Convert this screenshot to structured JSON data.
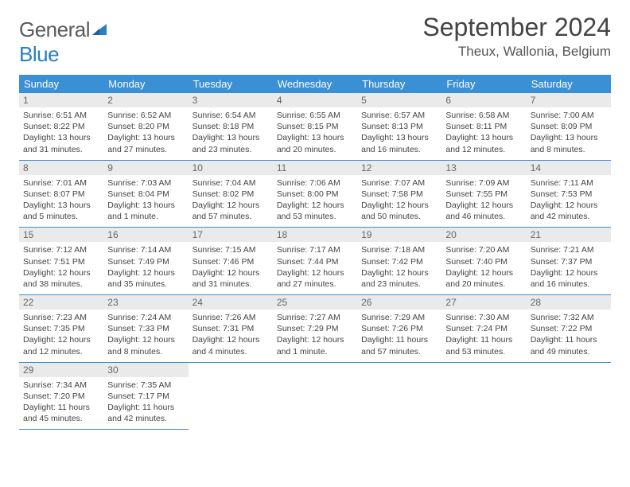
{
  "brand": {
    "word1": "General",
    "word2": "Blue"
  },
  "title": "September 2024",
  "location": "Theux, Wallonia, Belgium",
  "colors": {
    "header_bg": "#3b8fd4",
    "daynum_bg": "#eaeaea",
    "row_border": "#3b8fd4",
    "logo_gray": "#5a5a5a",
    "logo_blue": "#2a7fbf"
  },
  "weekdays": [
    "Sunday",
    "Monday",
    "Tuesday",
    "Wednesday",
    "Thursday",
    "Friday",
    "Saturday"
  ],
  "weeks": [
    [
      {
        "n": "1",
        "sr": "6:51 AM",
        "ss": "8:22 PM",
        "dl": "13 hours and 31 minutes."
      },
      {
        "n": "2",
        "sr": "6:52 AM",
        "ss": "8:20 PM",
        "dl": "13 hours and 27 minutes."
      },
      {
        "n": "3",
        "sr": "6:54 AM",
        "ss": "8:18 PM",
        "dl": "13 hours and 23 minutes."
      },
      {
        "n": "4",
        "sr": "6:55 AM",
        "ss": "8:15 PM",
        "dl": "13 hours and 20 minutes."
      },
      {
        "n": "5",
        "sr": "6:57 AM",
        "ss": "8:13 PM",
        "dl": "13 hours and 16 minutes."
      },
      {
        "n": "6",
        "sr": "6:58 AM",
        "ss": "8:11 PM",
        "dl": "13 hours and 12 minutes."
      },
      {
        "n": "7",
        "sr": "7:00 AM",
        "ss": "8:09 PM",
        "dl": "13 hours and 8 minutes."
      }
    ],
    [
      {
        "n": "8",
        "sr": "7:01 AM",
        "ss": "8:07 PM",
        "dl": "13 hours and 5 minutes."
      },
      {
        "n": "9",
        "sr": "7:03 AM",
        "ss": "8:04 PM",
        "dl": "13 hours and 1 minute."
      },
      {
        "n": "10",
        "sr": "7:04 AM",
        "ss": "8:02 PM",
        "dl": "12 hours and 57 minutes."
      },
      {
        "n": "11",
        "sr": "7:06 AM",
        "ss": "8:00 PM",
        "dl": "12 hours and 53 minutes."
      },
      {
        "n": "12",
        "sr": "7:07 AM",
        "ss": "7:58 PM",
        "dl": "12 hours and 50 minutes."
      },
      {
        "n": "13",
        "sr": "7:09 AM",
        "ss": "7:55 PM",
        "dl": "12 hours and 46 minutes."
      },
      {
        "n": "14",
        "sr": "7:11 AM",
        "ss": "7:53 PM",
        "dl": "12 hours and 42 minutes."
      }
    ],
    [
      {
        "n": "15",
        "sr": "7:12 AM",
        "ss": "7:51 PM",
        "dl": "12 hours and 38 minutes."
      },
      {
        "n": "16",
        "sr": "7:14 AM",
        "ss": "7:49 PM",
        "dl": "12 hours and 35 minutes."
      },
      {
        "n": "17",
        "sr": "7:15 AM",
        "ss": "7:46 PM",
        "dl": "12 hours and 31 minutes."
      },
      {
        "n": "18",
        "sr": "7:17 AM",
        "ss": "7:44 PM",
        "dl": "12 hours and 27 minutes."
      },
      {
        "n": "19",
        "sr": "7:18 AM",
        "ss": "7:42 PM",
        "dl": "12 hours and 23 minutes."
      },
      {
        "n": "20",
        "sr": "7:20 AM",
        "ss": "7:40 PM",
        "dl": "12 hours and 20 minutes."
      },
      {
        "n": "21",
        "sr": "7:21 AM",
        "ss": "7:37 PM",
        "dl": "12 hours and 16 minutes."
      }
    ],
    [
      {
        "n": "22",
        "sr": "7:23 AM",
        "ss": "7:35 PM",
        "dl": "12 hours and 12 minutes."
      },
      {
        "n": "23",
        "sr": "7:24 AM",
        "ss": "7:33 PM",
        "dl": "12 hours and 8 minutes."
      },
      {
        "n": "24",
        "sr": "7:26 AM",
        "ss": "7:31 PM",
        "dl": "12 hours and 4 minutes."
      },
      {
        "n": "25",
        "sr": "7:27 AM",
        "ss": "7:29 PM",
        "dl": "12 hours and 1 minute."
      },
      {
        "n": "26",
        "sr": "7:29 AM",
        "ss": "7:26 PM",
        "dl": "11 hours and 57 minutes."
      },
      {
        "n": "27",
        "sr": "7:30 AM",
        "ss": "7:24 PM",
        "dl": "11 hours and 53 minutes."
      },
      {
        "n": "28",
        "sr": "7:32 AM",
        "ss": "7:22 PM",
        "dl": "11 hours and 49 minutes."
      }
    ],
    [
      {
        "n": "29",
        "sr": "7:34 AM",
        "ss": "7:20 PM",
        "dl": "11 hours and 45 minutes."
      },
      {
        "n": "30",
        "sr": "7:35 AM",
        "ss": "7:17 PM",
        "dl": "11 hours and 42 minutes."
      },
      null,
      null,
      null,
      null,
      null
    ]
  ],
  "labels": {
    "sunrise": "Sunrise: ",
    "sunset": "Sunset: ",
    "daylight": "Daylight: "
  }
}
